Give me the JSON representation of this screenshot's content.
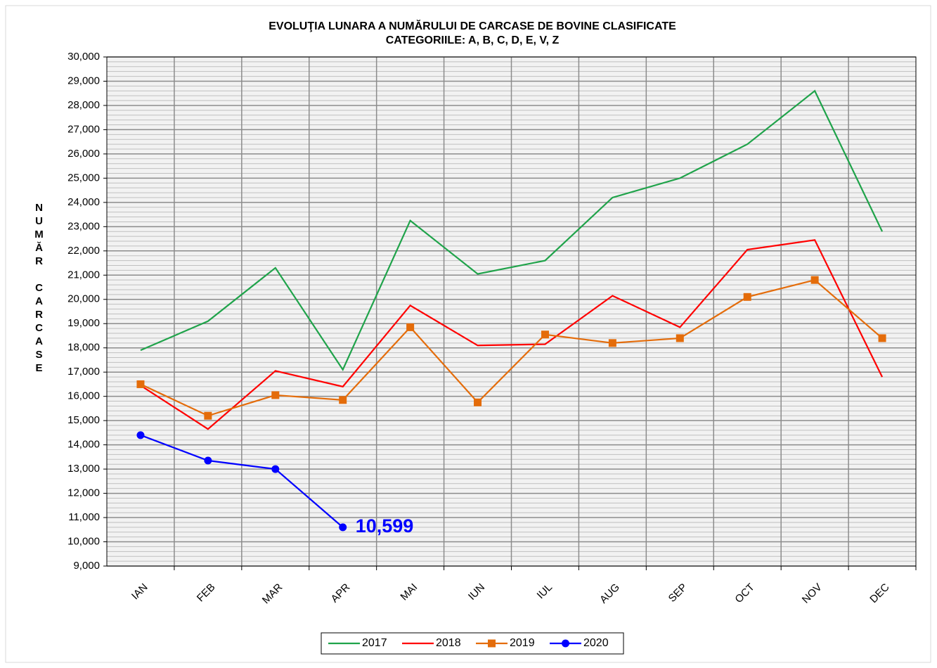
{
  "chart_data": {
    "type": "line",
    "title": "EVOLUŢIA LUNARA  A NUMĂRULUI DE CARCASE DE BOVINE  CLASIFICATE",
    "subtitle": "CATEGORIILE: A, B, C, D, E, V, Z",
    "y_label": "NUMĂR CARCASE",
    "categories": [
      "IAN",
      "FEB",
      "MAR",
      "APR",
      "MAI",
      "IUN",
      "IUL",
      "AUG",
      "SEP",
      "OCT",
      "NOV",
      "DEC"
    ],
    "series": [
      {
        "name": "2017",
        "color": "#1fa34a",
        "marker": "none",
        "values": [
          17900,
          19100,
          21300,
          17100,
          23250,
          21050,
          21600,
          24200,
          25000,
          26400,
          28600,
          22800
        ]
      },
      {
        "name": "2018",
        "color": "#ff0000",
        "marker": "none",
        "values": [
          16450,
          14650,
          17050,
          16400,
          19750,
          18100,
          18150,
          20150,
          18850,
          22050,
          22450,
          16800
        ]
      },
      {
        "name": "2019",
        "color": "#e46c0a",
        "marker": "square",
        "values": [
          16500,
          15200,
          16050,
          15850,
          18850,
          15750,
          18550,
          18200,
          18400,
          20100,
          20800,
          18400
        ]
      },
      {
        "name": "2020",
        "color": "#0000ff",
        "marker": "circle",
        "values": [
          14400,
          13350,
          13000,
          10599,
          null,
          null,
          null,
          null,
          null,
          null,
          null,
          null
        ],
        "value_labels": [
          null,
          null,
          null,
          "10,599",
          null,
          null,
          null,
          null,
          null,
          null,
          null,
          null
        ]
      }
    ],
    "ylim": [
      9000,
      30000
    ],
    "yticks": [
      {
        "value": 9000,
        "label": "9,000"
      },
      {
        "value": 10000,
        "label": "10,000"
      },
      {
        "value": 11000,
        "label": "11,000"
      },
      {
        "value": 12000,
        "label": "12,000"
      },
      {
        "value": 13000,
        "label": "13,000"
      },
      {
        "value": 14000,
        "label": "14,000"
      },
      {
        "value": 15000,
        "label": "15,000"
      },
      {
        "value": 16000,
        "label": "16,000"
      },
      {
        "value": 17000,
        "label": "17,000"
      },
      {
        "value": 18000,
        "label": "18,000"
      },
      {
        "value": 19000,
        "label": "19,000"
      },
      {
        "value": 20000,
        "label": "20,000"
      },
      {
        "value": 21000,
        "label": "21,000"
      },
      {
        "value": 22000,
        "label": "22,000"
      },
      {
        "value": 23000,
        "label": "23,000"
      },
      {
        "value": 24000,
        "label": "24,000"
      },
      {
        "value": 25000,
        "label": "25,000"
      },
      {
        "value": 26000,
        "label": "26,000"
      },
      {
        "value": 27000,
        "label": "27,000"
      },
      {
        "value": 28000,
        "label": "28,000"
      },
      {
        "value": 29000,
        "label": "29,000"
      },
      {
        "value": 30000,
        "label": "30,000"
      }
    ],
    "grid": true,
    "minor_grid_step": 200,
    "legend": "bottom"
  }
}
